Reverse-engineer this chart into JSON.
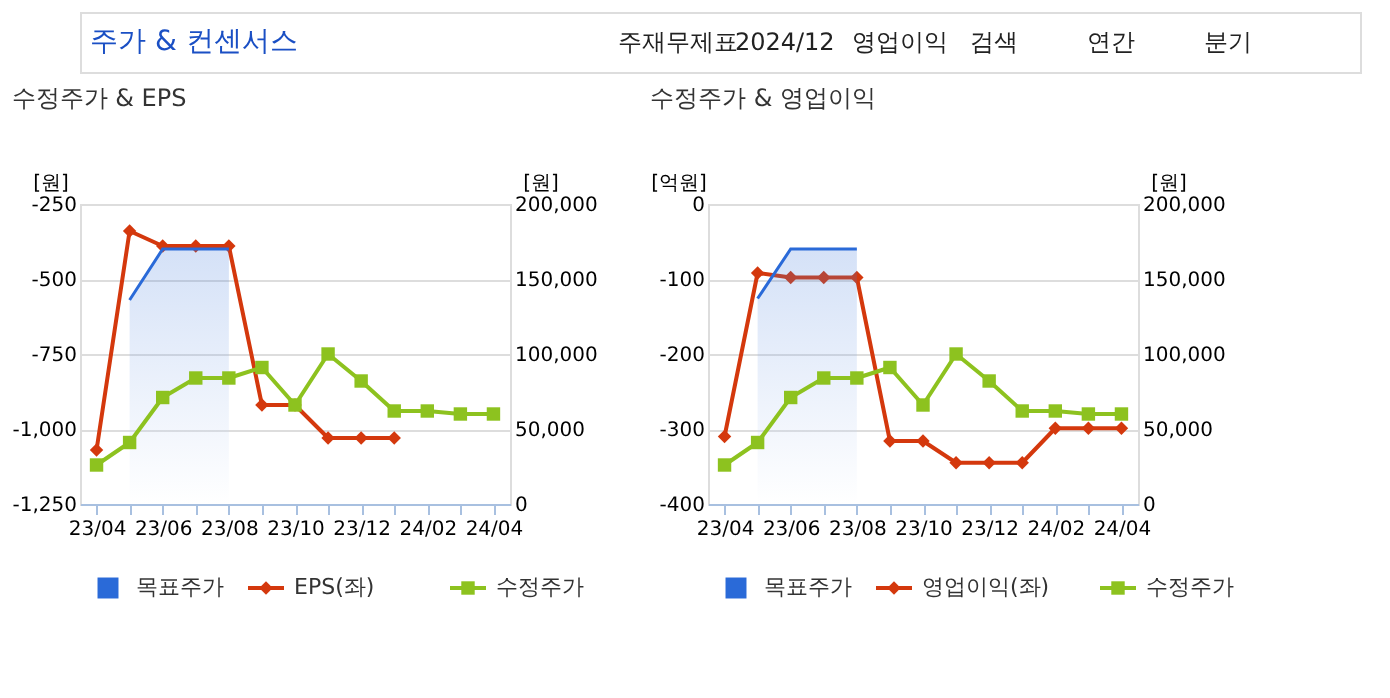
{
  "chart_data": [
    {
      "type": "other",
      "title": "주가 & 컨센서스",
      "annotations": [
        "주재무제표",
        "2024/12",
        "영업이익",
        "검색",
        "연간",
        "분기"
      ]
    },
    {
      "type": "line",
      "title": "수정주가 & EPS",
      "ylabel": "[원]",
      "y2label": "[원]",
      "categories": [
        "23/04",
        null,
        "23/06",
        null,
        "23/08",
        null,
        "23/10",
        null,
        "23/12",
        null,
        "24/02",
        null,
        "24/04"
      ],
      "ylim": [
        -1250,
        -250
      ],
      "yticks": [
        {
          "value": -1250,
          "label": "-1,250"
        },
        {
          "value": -1000,
          "label": "-1,000"
        },
        -750,
        -500,
        -250
      ],
      "y2lim": [
        0,
        200000
      ],
      "y2ticks": [
        0,
        {
          "value": 50000,
          "label": "50,000"
        },
        {
          "value": 100000,
          "label": "100,000"
        },
        {
          "value": 150000,
          "label": "150,000"
        },
        {
          "value": 200000,
          "label": "200,000"
        }
      ],
      "grid": "y",
      "legend": "bottom",
      "series": [
        {
          "name": "목표주가",
          "type": "area",
          "axis": "y2",
          "color": "#2a6ad8",
          "values": [
            null,
            136000,
            170000,
            170000,
            170000,
            null,
            null,
            null,
            null,
            null,
            null,
            null,
            null
          ]
        },
        {
          "name": "EPS(좌)",
          "color": "#d4380d",
          "marker": "diamond",
          "values": [
            -1070,
            -340,
            -390,
            -390,
            -390,
            -920,
            -920,
            -1030,
            -1030,
            -1030,
            null,
            null,
            null
          ]
        },
        {
          "name": "수정주가",
          "axis": "y2",
          "color": "#8dc21f",
          "marker": "square",
          "values": [
            26000,
            41000,
            71000,
            84000,
            84000,
            91000,
            66000,
            100000,
            82000,
            62000,
            62000,
            60000,
            60000
          ]
        }
      ]
    },
    {
      "type": "line",
      "title": "수정주가 & 영업이익",
      "ylabel": "[억원]",
      "y2label": "[원]",
      "categories": [
        "23/04",
        null,
        "23/06",
        null,
        "23/08",
        null,
        "23/10",
        null,
        "23/12",
        null,
        "24/02",
        null,
        "24/04"
      ],
      "ylim": [
        -400,
        0
      ],
      "yticks": [
        -400,
        -300,
        -200,
        -100,
        0
      ],
      "y2lim": [
        0,
        200000
      ],
      "y2ticks": [
        0,
        {
          "value": 50000,
          "label": "50,000"
        },
        {
          "value": 100000,
          "label": "100,000"
        },
        {
          "value": 150000,
          "label": "150,000"
        },
        {
          "value": 200000,
          "label": "200,000"
        }
      ],
      "grid": "y",
      "legend": "bottom",
      "series": [
        {
          "name": "목표주가",
          "type": "area",
          "axis": "y2",
          "color": "#2a6ad8",
          "values": [
            null,
            137000,
            170000,
            170000,
            170000,
            null,
            null,
            null,
            null,
            null,
            null,
            null,
            null
          ]
        },
        {
          "name": "영업이익(좌)",
          "color": "#d4380d",
          "marker": "diamond",
          "values": [
            -310,
            -92,
            -98,
            -98,
            -98,
            -316,
            -316,
            -345,
            -345,
            -345,
            -299,
            -299,
            -299
          ]
        },
        {
          "name": "수정주가",
          "axis": "y2",
          "color": "#8dc21f",
          "marker": "square",
          "values": [
            26000,
            41000,
            71000,
            84000,
            84000,
            91000,
            66000,
            100000,
            82000,
            62000,
            62000,
            60000,
            60000
          ]
        }
      ]
    }
  ]
}
